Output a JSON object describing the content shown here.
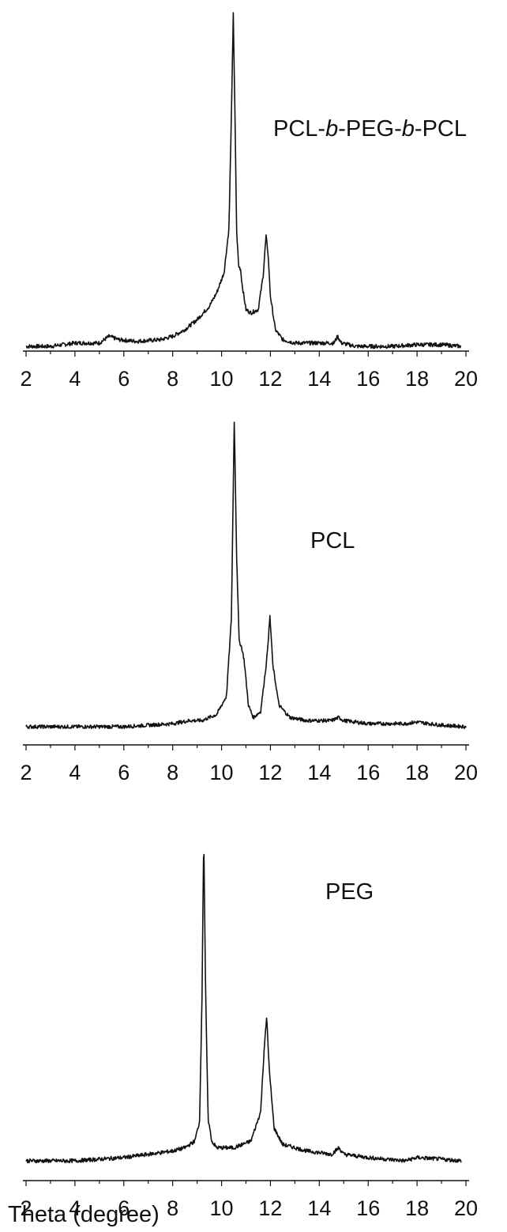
{
  "chart_data": {
    "type": "line",
    "xlabel": "Theta (degree)",
    "xlim": [
      2,
      20
    ],
    "x_ticks": [
      "2",
      "4",
      "6",
      "8",
      "10",
      "12",
      "14",
      "16",
      "18",
      "20"
    ],
    "grid": false,
    "panels": [
      {
        "label_parts": [
          {
            "t": "PCL-",
            "italic": false
          },
          {
            "t": "b",
            "italic": true
          },
          {
            "t": "-PEG-",
            "italic": false
          },
          {
            "t": "b",
            "italic": true
          },
          {
            "t": "-PCL",
            "italic": false
          }
        ],
        "series": [
          {
            "x": [
              2.0,
              3.0,
              4.0,
              5.0,
              5.4,
              5.8,
              6.5,
              7.5,
              8.0,
              8.5,
              9.0,
              9.5,
              9.8,
              10.1,
              10.3,
              10.4,
              10.48,
              10.55,
              10.62,
              10.7,
              10.78,
              10.85,
              11.0,
              11.2,
              11.5,
              11.7,
              11.82,
              11.9,
              12.0,
              12.2,
              12.5,
              13.0,
              14.0,
              14.6,
              14.75,
              14.9,
              15.5,
              17.0,
              18.0,
              19.0,
              19.8
            ],
            "y": [
              0.0,
              0.0,
              0.01,
              0.01,
              0.03,
              0.02,
              0.015,
              0.02,
              0.03,
              0.05,
              0.08,
              0.12,
              0.16,
              0.22,
              0.35,
              0.68,
              1.0,
              0.68,
              0.34,
              0.24,
              0.23,
              0.18,
              0.11,
              0.1,
              0.11,
              0.21,
              0.33,
              0.28,
              0.15,
              0.05,
              0.02,
              0.01,
              0.01,
              0.01,
              0.03,
              0.01,
              0.0,
              0.0,
              0.005,
              0.005,
              0.0
            ]
          }
        ]
      },
      {
        "label_parts": [
          {
            "t": "PCL",
            "italic": false
          }
        ],
        "series": [
          {
            "x": [
              2.0,
              4.0,
              6.0,
              8.0,
              8.7,
              9.2,
              9.8,
              10.2,
              10.4,
              10.52,
              10.62,
              10.72,
              10.82,
              10.92,
              11.1,
              11.3,
              11.6,
              11.85,
              11.98,
              12.1,
              12.35,
              12.8,
              13.5,
              14.5,
              14.8,
              15.0,
              16.0,
              17.5,
              18.0,
              19.0,
              20.0
            ],
            "y": [
              0.0,
              0.0,
              0.0,
              0.01,
              0.02,
              0.02,
              0.04,
              0.1,
              0.35,
              1.0,
              0.55,
              0.28,
              0.26,
              0.22,
              0.07,
              0.03,
              0.05,
              0.22,
              0.36,
              0.2,
              0.07,
              0.03,
              0.02,
              0.02,
              0.03,
              0.02,
              0.01,
              0.01,
              0.015,
              0.005,
              0.0
            ]
          }
        ]
      },
      {
        "label_parts": [
          {
            "t": "PEG",
            "italic": false
          }
        ],
        "series": [
          {
            "x": [
              2.0,
              4.0,
              6.0,
              7.0,
              8.0,
              8.5,
              8.9,
              9.1,
              9.2,
              9.27,
              9.35,
              9.45,
              9.6,
              9.8,
              10.5,
              11.2,
              11.6,
              11.75,
              11.85,
              11.95,
              12.15,
              12.5,
              13.5,
              14.5,
              14.8,
              15.0,
              16.0,
              17.5,
              18.0,
              19.0,
              19.8
            ],
            "y": [
              0.0,
              0.0,
              0.01,
              0.02,
              0.03,
              0.04,
              0.06,
              0.12,
              0.5,
              1.0,
              0.5,
              0.13,
              0.06,
              0.04,
              0.04,
              0.06,
              0.15,
              0.35,
              0.44,
              0.28,
              0.1,
              0.05,
              0.03,
              0.02,
              0.04,
              0.02,
              0.01,
              0.0,
              0.01,
              0.005,
              0.0
            ]
          }
        ]
      }
    ],
    "line_color": "#111111"
  }
}
